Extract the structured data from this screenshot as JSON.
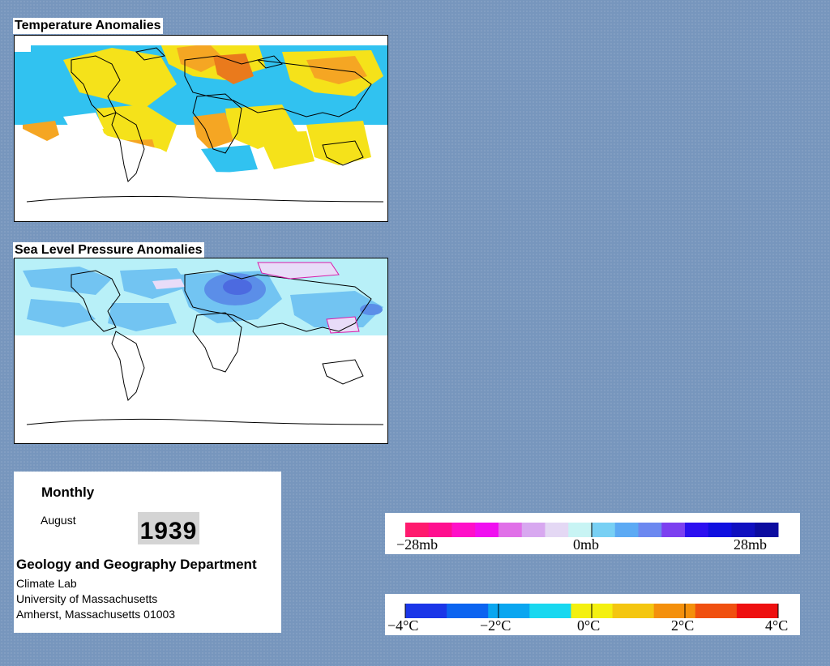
{
  "panels": {
    "temperature": {
      "title": "Temperature Anomalies"
    },
    "pressure": {
      "title": "Sea Level Pressure Anomalies"
    }
  },
  "info": {
    "heading": "Monthly",
    "month": "August",
    "year": "1939",
    "department": "Geology and Geography Department",
    "address": [
      "Climate Lab",
      "University of Massachusetts",
      "Amherst, Massachusetts 01003"
    ]
  },
  "pressure_legend": {
    "colors": [
      "#ff1a6e",
      "#ff0f8f",
      "#ff10c8",
      "#f010f0",
      "#e070e8",
      "#d8a8f0",
      "#e4d8f4",
      "#c8f4f4",
      "#78d0f4",
      "#5caaf4",
      "#6c88f0",
      "#7c40f0",
      "#2c10f0",
      "#1010e0",
      "#1010c0",
      "#0c0ca0"
    ],
    "labels": [
      "−28mb",
      "0mb",
      "28mb"
    ]
  },
  "temperature_legend": {
    "colors": [
      "#1a36e8",
      "#0c64f0",
      "#0aa6f0",
      "#18d8f0",
      "#f4f010",
      "#f4c610",
      "#f4900c",
      "#f05010",
      "#ee1010"
    ],
    "labels": [
      "−4°C",
      "−2°C",
      "0°C",
      "2°C",
      "4°C"
    ]
  },
  "map_colors": {
    "warm": "#f5e21a",
    "warmer": "#f5a623",
    "hot": "#ea7a1c",
    "cool": "#31c2f0",
    "cold": "#1b93e8",
    "coldest": "#1c3de6",
    "no_data": "#ffffff",
    "pressure_low": "#b8f0f8",
    "pressure_mid": "#72c4f2",
    "pressure_deep": "#5b8ee8",
    "pressure_high": "#e8dcf8"
  }
}
